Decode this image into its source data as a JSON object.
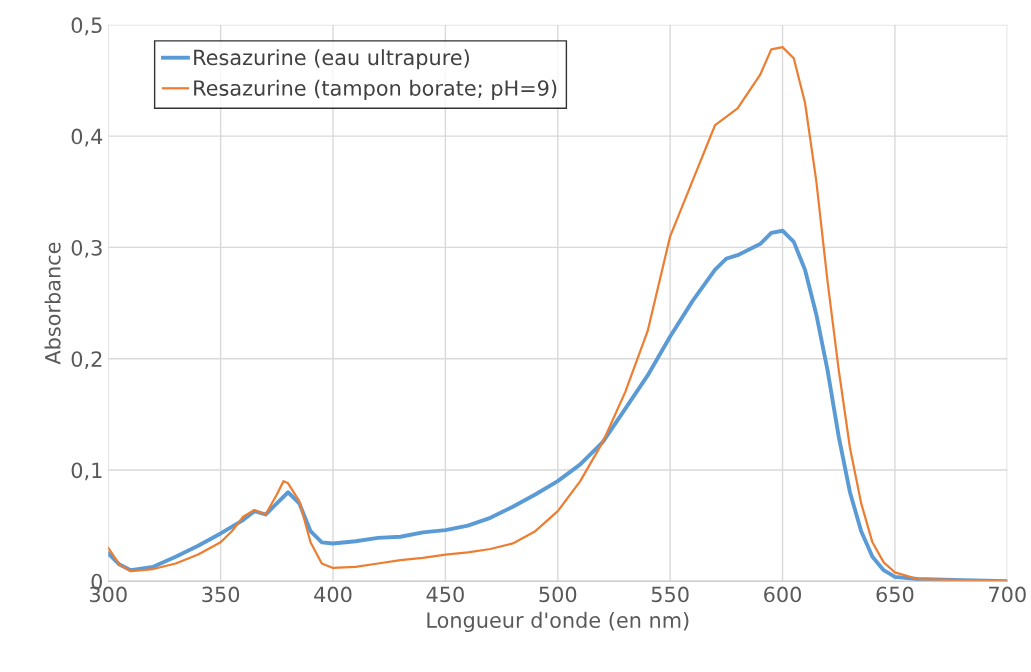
{
  "chart_data": {
    "type": "line",
    "xlabel": "Longueur d'onde (en nm)",
    "ylabel": "Absorbance",
    "xlim": [
      300,
      700
    ],
    "xticks": [
      300,
      350,
      400,
      450,
      500,
      550,
      600,
      650,
      700
    ],
    "ylim": [
      0,
      0.5
    ],
    "yticks": [
      {
        "value": 0,
        "label": "0"
      },
      {
        "value": 0.1,
        "label": "0,1"
      },
      {
        "value": 0.2,
        "label": "0,2"
      },
      {
        "value": 0.3,
        "label": "0,3"
      },
      {
        "value": 0.4,
        "label": "0,4"
      },
      {
        "value": 0.5,
        "label": "0,5"
      }
    ],
    "grid": true,
    "legend": "top left",
    "marker": "none",
    "line_style": "solid",
    "series": [
      {
        "name": "Resazurine (eau ultrapure)",
        "color": "#5b9bd5",
        "x": [
          300,
          305,
          310,
          320,
          330,
          340,
          350,
          360,
          365,
          370,
          375,
          380,
          385,
          390,
          395,
          400,
          410,
          420,
          430,
          440,
          450,
          460,
          470,
          480,
          490,
          500,
          510,
          520,
          530,
          540,
          550,
          560,
          570,
          575,
          580,
          590,
          595,
          600,
          605,
          610,
          615,
          620,
          625,
          630,
          635,
          640,
          645,
          650,
          660,
          680,
          700
        ],
        "values": [
          0.025,
          0.015,
          0.01,
          0.013,
          0.022,
          0.032,
          0.043,
          0.055,
          0.063,
          0.06,
          0.07,
          0.08,
          0.07,
          0.045,
          0.035,
          0.034,
          0.036,
          0.039,
          0.04,
          0.044,
          0.046,
          0.05,
          0.057,
          0.067,
          0.078,
          0.09,
          0.105,
          0.125,
          0.155,
          0.185,
          0.22,
          0.252,
          0.28,
          0.29,
          0.293,
          0.303,
          0.313,
          0.315,
          0.305,
          0.28,
          0.24,
          0.19,
          0.13,
          0.08,
          0.045,
          0.022,
          0.01,
          0.004,
          0.002,
          0.001,
          0
        ]
      },
      {
        "name": "Resazurine (tampon borate; pH=9)",
        "color": "#ed7d31",
        "x": [
          300,
          305,
          310,
          320,
          330,
          340,
          350,
          355,
          360,
          365,
          370,
          375,
          378,
          380,
          385,
          390,
          395,
          400,
          410,
          420,
          430,
          440,
          450,
          460,
          470,
          480,
          490,
          500,
          510,
          520,
          530,
          540,
          550,
          560,
          570,
          580,
          590,
          595,
          600,
          605,
          610,
          615,
          620,
          625,
          630,
          635,
          640,
          645,
          650,
          660,
          680,
          700
        ],
        "values": [
          0.03,
          0.015,
          0.009,
          0.011,
          0.016,
          0.024,
          0.035,
          0.045,
          0.058,
          0.064,
          0.06,
          0.078,
          0.09,
          0.088,
          0.072,
          0.035,
          0.016,
          0.012,
          0.013,
          0.016,
          0.019,
          0.021,
          0.024,
          0.026,
          0.029,
          0.034,
          0.045,
          0.063,
          0.09,
          0.125,
          0.17,
          0.225,
          0.31,
          0.36,
          0.41,
          0.425,
          0.455,
          0.478,
          0.48,
          0.47,
          0.43,
          0.36,
          0.27,
          0.19,
          0.12,
          0.07,
          0.035,
          0.017,
          0.008,
          0.002,
          0.001,
          0
        ]
      }
    ]
  }
}
